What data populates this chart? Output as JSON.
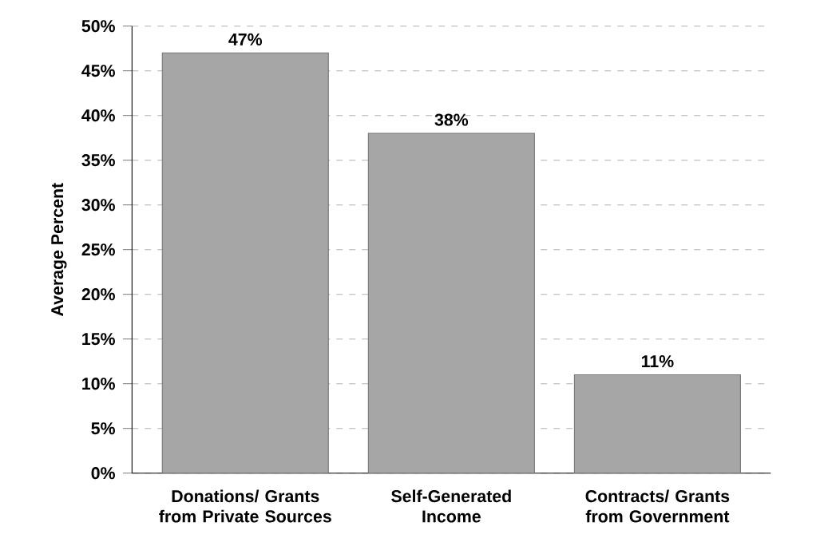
{
  "chart_data": {
    "type": "bar",
    "ylabel": "Average Percent",
    "categories": [
      "Donations/ Grants from Private Sources",
      "Self-Generated Income",
      "Contracts/ Grants from Government"
    ],
    "values": [
      47,
      38,
      11
    ],
    "color": "#a6a6a6",
    "value_labels": [
      "47%",
      "38%",
      "11%"
    ],
    "ylim": [
      0,
      50
    ],
    "yticks": [
      {
        "value": 0,
        "label": "0%"
      },
      {
        "value": 5,
        "label": "5%"
      },
      {
        "value": 10,
        "label": "10%"
      },
      {
        "value": 15,
        "label": "15%"
      },
      {
        "value": 20,
        "label": "20%"
      },
      {
        "value": 25,
        "label": "25%"
      },
      {
        "value": 30,
        "label": "30%"
      },
      {
        "value": 35,
        "label": "35%"
      },
      {
        "value": 40,
        "label": "40%"
      },
      {
        "value": 45,
        "label": "45%"
      },
      {
        "value": 50,
        "label": "50%"
      }
    ],
    "grid": "y"
  }
}
